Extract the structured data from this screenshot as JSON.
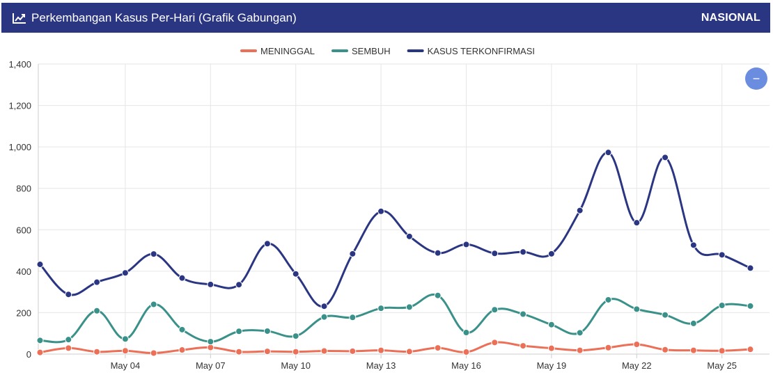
{
  "header": {
    "title": "Perkembangan Kasus Per-Hari (Grafik Gabungan)",
    "region": "NASIONAL",
    "background": "#2b3683",
    "icon": "line-chart-icon"
  },
  "controls": {
    "zoom_out_icon": "minus-icon",
    "zoom_out_label": "−"
  },
  "chart_data": {
    "type": "line",
    "title": "",
    "xlabel": "",
    "ylabel": "",
    "ylim": [
      0,
      1400
    ],
    "yticks": [
      0,
      200,
      400,
      600,
      800,
      1000,
      1200,
      1400
    ],
    "ytick_labels": [
      "0",
      "200",
      "400",
      "600",
      "800",
      "1,000",
      "1,200",
      "1,400"
    ],
    "grid": true,
    "legend_position": "top-center",
    "x": [
      "May 01",
      "May 02",
      "May 03",
      "May 04",
      "May 05",
      "May 06",
      "May 07",
      "May 08",
      "May 09",
      "May 10",
      "May 11",
      "May 12",
      "May 13",
      "May 14",
      "May 15",
      "May 16",
      "May 17",
      "May 18",
      "May 19",
      "May 20",
      "May 21",
      "May 22",
      "May 23",
      "May 24",
      "May 25",
      "May 26"
    ],
    "xticks": [
      "May 04",
      "May 07",
      "May 10",
      "May 13",
      "May 16",
      "May 19",
      "May 22",
      "May 25"
    ],
    "series": [
      {
        "name": "MENINGGAL",
        "color": "#ec6f57",
        "values": [
          8,
          29,
          11,
          16,
          5,
          20,
          32,
          11,
          13,
          11,
          15,
          14,
          18,
          12,
          30,
          10,
          56,
          40,
          28,
          18,
          31,
          47,
          21,
          18,
          16,
          23
        ]
      },
      {
        "name": "SEMBUH",
        "color": "#3a9189",
        "values": [
          66,
          70,
          209,
          73,
          240,
          118,
          60,
          110,
          111,
          87,
          179,
          177,
          221,
          227,
          283,
          104,
          214,
          193,
          142,
          103,
          262,
          217,
          189,
          148,
          235,
          232
        ]
      },
      {
        "name": "KASUS TERKONFIRMASI",
        "color": "#2b3683",
        "values": [
          433,
          288,
          347,
          392,
          483,
          367,
          336,
          335,
          533,
          387,
          231,
          484,
          689,
          568,
          488,
          529,
          486,
          493,
          484,
          693,
          973,
          634,
          949,
          526,
          479,
          415
        ]
      }
    ]
  }
}
